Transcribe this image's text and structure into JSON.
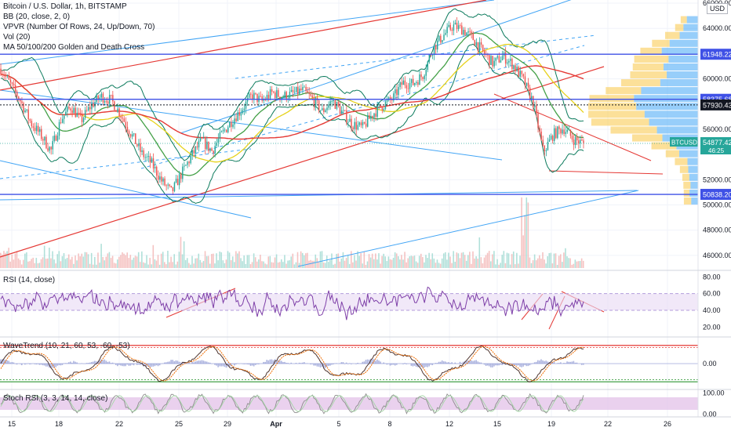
{
  "header": {
    "symbol_title": "Bitcoin / U.S. Dollar, 1h, BITSTAMP",
    "indicators": [
      "BB (20, close, 2, 0)",
      "VPVR (Number Of Rows, 24, Up/Down, 70)",
      "Vol (20)",
      "MA 50/100/200 Golden and Death Cross"
    ],
    "currency": "USD"
  },
  "panes": {
    "rsi_label": "RSI (14, close)",
    "wavetrend_label": "WaveTrend (10, 21, 60, 53, -60, -53)",
    "stochrsi_label": "Stoch RSI (3, 3, 14, 14, close)"
  },
  "colors": {
    "up": "#26a69a",
    "down": "#ef5350",
    "bb": "#0b7a5c",
    "ma50": "#43a047",
    "ma100": "#e6d21c",
    "ma200": "#e53935",
    "channel": "#42a5f5",
    "hline": "#3f51e6",
    "rsi": "#7e3fa8",
    "vpvr_up": "#42a5f5",
    "vpvr_down": "#f9c646"
  },
  "chart_data": {
    "type": "candlestick",
    "title": "Bitcoin / U.S. Dollar, 1h, BITSTAMP",
    "y_axis": {
      "min": 45000,
      "max": 66000,
      "ticks": [
        "46000.00",
        "48000.00",
        "50000.00",
        "52000.00",
        "56000.00",
        "60000.00",
        "64000.00",
        "66000.00"
      ]
    },
    "x_axis": {
      "ticks": [
        "15",
        "18",
        "22",
        "25",
        "29",
        "Apr",
        "5",
        "8",
        "12",
        "15",
        "19",
        "22",
        "26"
      ]
    },
    "close_path": [
      [
        0,
        60800
      ],
      [
        3,
        59500
      ],
      [
        6,
        58200
      ],
      [
        9,
        56500
      ],
      [
        12,
        55500
      ],
      [
        15,
        54300
      ],
      [
        18,
        56800
      ],
      [
        21,
        57800
      ],
      [
        24,
        56700
      ],
      [
        27,
        57900
      ],
      [
        30,
        58600
      ],
      [
        33,
        58300
      ],
      [
        36,
        57100
      ],
      [
        39,
        55600
      ],
      [
        42,
        54100
      ],
      [
        45,
        53300
      ],
      [
        48,
        51900
      ],
      [
        51,
        51000
      ],
      [
        54,
        52500
      ],
      [
        57,
        53900
      ],
      [
        60,
        55100
      ],
      [
        63,
        54300
      ],
      [
        66,
        55600
      ],
      [
        69,
        56700
      ],
      [
        72,
        57600
      ],
      [
        75,
        58700
      ],
      [
        78,
        58200
      ],
      [
        81,
        58900
      ],
      [
        84,
        58600
      ],
      [
        87,
        58800
      ],
      [
        90,
        59100
      ],
      [
        93,
        58400
      ],
      [
        96,
        57400
      ],
      [
        99,
        58300
      ],
      [
        102,
        57300
      ],
      [
        105,
        56400
      ],
      [
        108,
        56100
      ],
      [
        111,
        57200
      ],
      [
        114,
        57900
      ],
      [
        117,
        58400
      ],
      [
        120,
        59700
      ],
      [
        123,
        59600
      ],
      [
        126,
        60300
      ],
      [
        129,
        62400
      ],
      [
        132,
        63400
      ],
      [
        135,
        64200
      ],
      [
        138,
        63900
      ],
      [
        141,
        63200
      ],
      [
        144,
        62100
      ],
      [
        147,
        61200
      ],
      [
        150,
        61800
      ],
      [
        153,
        61100
      ],
      [
        156,
        59900
      ],
      [
        159,
        58100
      ],
      [
        162,
        54200
      ],
      [
        165,
        55600
      ],
      [
        168,
        56100
      ],
      [
        171,
        55200
      ],
      [
        174,
        54877
      ]
    ],
    "price_lines": [
      {
        "label": "61948.22",
        "value": 61948.22,
        "color": "#3f51e6"
      },
      {
        "label": "58375.68",
        "value": 58375.68,
        "color": "#3f51e6"
      },
      {
        "label": "57930.43",
        "value": 57930.43,
        "color": "#131722",
        "style": "dotted"
      },
      {
        "label": "50838.20",
        "value": 50838.2,
        "color": "#3f51e6"
      }
    ],
    "last_price": {
      "symbol": "BTCUSD",
      "value": "54877.42",
      "countdown": "46:25"
    },
    "rsi": {
      "ticks": [
        "80.00",
        "60.00",
        "40.00",
        "20.00"
      ],
      "min": 10,
      "max": 85,
      "band": [
        40,
        60
      ]
    },
    "wavetrend": {
      "ticks": [
        "0.00"
      ],
      "min": -80,
      "max": 80,
      "levels": [
        60,
        53,
        -53,
        -60
      ]
    },
    "stoch_rsi": {
      "ticks": [
        "100.00",
        "0.00"
      ],
      "min": -10,
      "max": 110,
      "band": [
        20,
        80
      ]
    }
  }
}
